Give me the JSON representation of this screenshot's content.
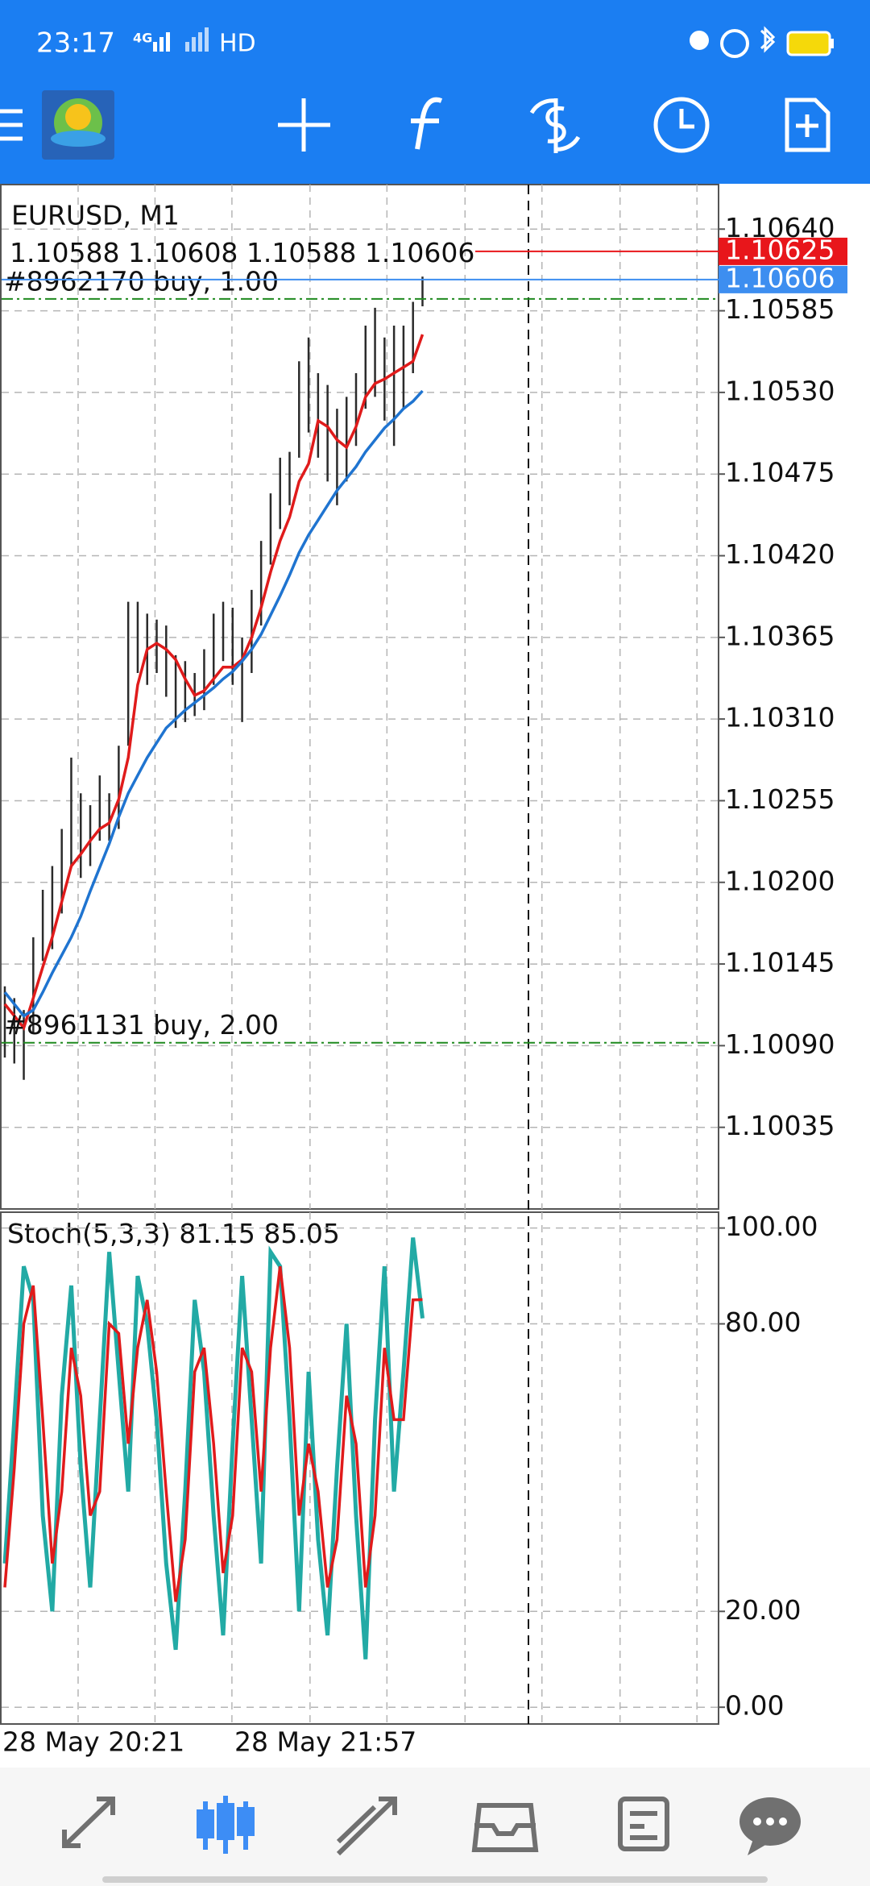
{
  "status_bar": {
    "time": "23:17",
    "network": "4G",
    "hd": "HD"
  },
  "chart_data": [
    {
      "type": "ohlc",
      "title": "EURUSD, M1",
      "last_bar": {
        "open": 1.10588,
        "high": 1.10608,
        "low": 1.10588,
        "close": 1.10606
      },
      "bar_color": "#2b2b2b",
      "high": [
        1.1013,
        1.10122,
        1.10114,
        1.10163,
        1.10195,
        1.10211,
        1.10236,
        1.10284,
        1.1026,
        1.10252,
        1.10272,
        1.1026,
        1.10292,
        1.10389,
        1.10389,
        1.10381,
        1.10377,
        1.10373,
        1.10353,
        1.10349,
        1.10341,
        1.10357,
        1.10381,
        1.10389,
        1.10385,
        1.10365,
        1.10397,
        1.1043,
        1.10462,
        1.10486,
        1.1049,
        1.10551,
        1.10567,
        1.10543,
        1.10535,
        1.10519,
        1.10527,
        1.10543,
        1.10575,
        1.10587,
        1.10567,
        1.10575,
        1.10575,
        1.10591,
        1.10608
      ],
      "low": [
        1.10082,
        1.10078,
        1.10067,
        1.10098,
        1.10147,
        1.10155,
        1.10179,
        1.10211,
        1.10203,
        1.10211,
        1.10228,
        1.10228,
        1.10236,
        1.10292,
        1.10341,
        1.10333,
        1.10341,
        1.10325,
        1.10304,
        1.10308,
        1.10312,
        1.10316,
        1.10333,
        1.10349,
        1.10333,
        1.10308,
        1.10341,
        1.10373,
        1.10414,
        1.10438,
        1.10454,
        1.10486,
        1.10503,
        1.10486,
        1.1047,
        1.10454,
        1.1047,
        1.10494,
        1.10519,
        1.10527,
        1.10511,
        1.10494,
        1.10519,
        1.10543,
        1.10588
      ],
      "lines": [
        {
          "color": "#e01b1b",
          "values": [
            1.10118,
            1.1011,
            1.10102,
            1.10122,
            1.10143,
            1.10163,
            1.10187,
            1.10211,
            1.10219,
            1.10228,
            1.10236,
            1.1024,
            1.10256,
            1.10284,
            1.10333,
            1.10357,
            1.10361,
            1.10357,
            1.1035,
            1.10337,
            1.10326,
            1.10329,
            1.10337,
            1.10345,
            1.10345,
            1.1035,
            1.10365,
            1.10385,
            1.10409,
            1.1043,
            1.10446,
            1.1047,
            1.10482,
            1.10511,
            1.10507,
            1.10498,
            1.10493,
            1.10507,
            1.10527,
            1.10536,
            1.10539,
            1.10543,
            1.10547,
            1.10551,
            1.10569
          ]
        },
        {
          "color": "#1f74d0",
          "values": [
            1.10126,
            1.10118,
            1.1011,
            1.10114,
            1.10126,
            1.10139,
            1.10151,
            1.10163,
            1.10177,
            1.10194,
            1.1021,
            1.10226,
            1.10244,
            1.1026,
            1.10272,
            1.10284,
            1.10294,
            1.10304,
            1.1031,
            1.10316,
            1.10321,
            1.10326,
            1.10331,
            1.10337,
            1.10342,
            1.10349,
            1.10357,
            1.10367,
            1.1038,
            1.10393,
            1.10407,
            1.10422,
            1.10434,
            1.10444,
            1.10454,
            1.10464,
            1.10472,
            1.1048,
            1.1049,
            1.10498,
            1.10506,
            1.10512,
            1.10519,
            1.10524,
            1.10531
          ]
        }
      ],
      "ask": 1.10625,
      "ask_color": "#e8161b",
      "bid": 1.10606,
      "bid_color": "#3d8ef0",
      "orders": [
        {
          "label": "#8962170 buy, 1.00",
          "price": 1.10593
        },
        {
          "label": "#8961131 buy, 2.00",
          "price": 1.10092
        }
      ],
      "ylim": [
        1.0998,
        1.1067
      ],
      "yticks": [
        {
          "value": 1.1064,
          "label": "1.10640"
        },
        1.10585,
        {
          "value": 1.1053,
          "label": "1.10530"
        },
        1.10475,
        {
          "value": 1.1042,
          "label": "1.10420"
        },
        1.10365,
        {
          "value": 1.1031,
          "label": "1.10310"
        },
        1.10255,
        {
          "value": 1.102,
          "label": "1.10200"
        },
        1.10145,
        {
          "value": 1.1009,
          "label": "1.10090"
        },
        1.10035
      ],
      "grid": true,
      "x_labels": [
        "28 May 20:21",
        "28 May 21:57"
      ]
    },
    {
      "type": "stochastic",
      "title": "Stoch(5,3,3)",
      "series": [
        {
          "color": "#22aaa5",
          "values": [
            30,
            60,
            92,
            85,
            40,
            20,
            65,
            88,
            50,
            25,
            60,
            95,
            70,
            45,
            90,
            80,
            60,
            30,
            12,
            45,
            85,
            70,
            40,
            15,
            55,
            90,
            60,
            30,
            95,
            92,
            60,
            20,
            70,
            35,
            15,
            50,
            80,
            40,
            10,
            60,
            92,
            45,
            70,
            98,
            81.15
          ]
        },
        {
          "color": "#e01b1b",
          "values": [
            25,
            50,
            80,
            88,
            60,
            30,
            45,
            75,
            65,
            40,
            45,
            80,
            78,
            55,
            75,
            85,
            70,
            45,
            22,
            35,
            70,
            75,
            55,
            28,
            40,
            75,
            70,
            45,
            75,
            92,
            75,
            40,
            55,
            45,
            25,
            35,
            65,
            55,
            25,
            40,
            75,
            60,
            60,
            85,
            85.05
          ]
        }
      ],
      "ylim": [
        -3.5,
        103.3
      ],
      "yticks": [
        {
          "value": 100,
          "label": "100.00"
        },
        {
          "value": 80,
          "label": "80.00"
        },
        {
          "value": 20,
          "label": "20.00"
        },
        {
          "value": 0,
          "label": "0.00"
        }
      ],
      "grid": true
    }
  ]
}
